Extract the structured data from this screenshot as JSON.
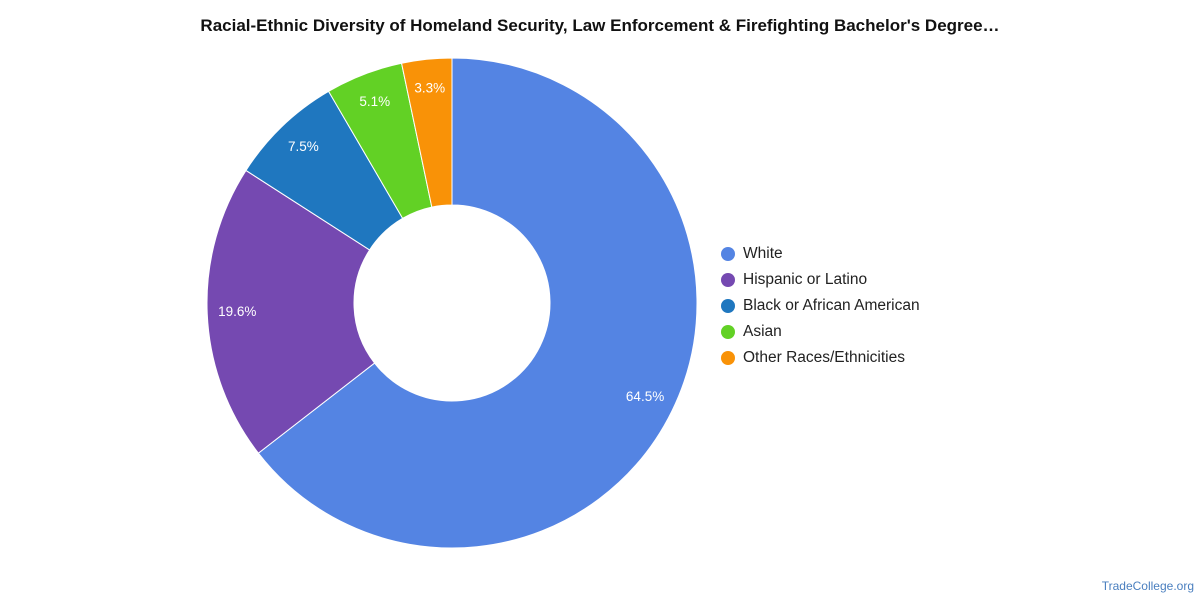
{
  "chart_data": {
    "type": "pie",
    "variant": "donut",
    "title": "Racial-Ethnic Diversity of Homeland Security, Law Enforcement & Firefighting Bachelor's Degree…",
    "slices": [
      {
        "name": "White",
        "value": 64.5,
        "label": "64.5%",
        "color": "#5484e3"
      },
      {
        "name": "Hispanic or Latino",
        "value": 19.6,
        "label": "19.6%",
        "color": "#7549b1"
      },
      {
        "name": "Black or African American",
        "value": 7.5,
        "label": "7.5%",
        "color": "#1f77bf"
      },
      {
        "name": "Asian",
        "value": 5.1,
        "label": "5.1%",
        "color": "#62d125"
      },
      {
        "name": "Other Races/Ethnicities",
        "value": 3.3,
        "label": "3.3%",
        "color": "#f99207"
      }
    ],
    "legend_position": "right"
  },
  "footer": {
    "source": "TradeCollege.org"
  }
}
